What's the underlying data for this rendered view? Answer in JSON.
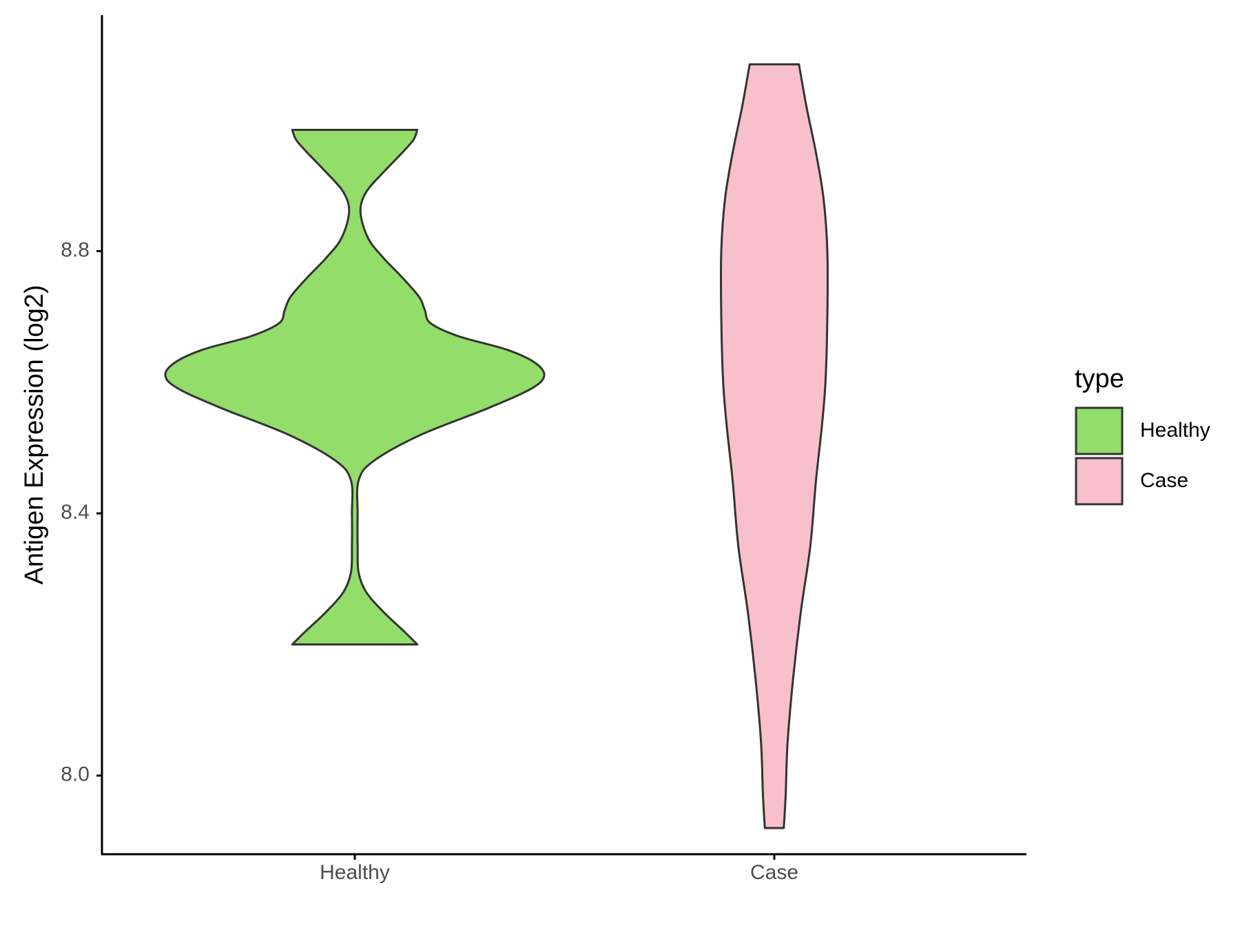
{
  "chart_data": {
    "type": "violin",
    "title": "",
    "xlabel": "",
    "ylabel": "Antigen Expression (log2)",
    "ylim": [
      7.88,
      9.16
    ],
    "yticks": [
      {
        "value": 8.0,
        "label": "8.0"
      },
      {
        "value": 8.4,
        "label": "8.4"
      },
      {
        "value": 8.8,
        "label": "8.8"
      }
    ],
    "categories": [
      "Healthy",
      "Case"
    ],
    "grid": false,
    "legend": {
      "title": "type",
      "position": "right",
      "entries": [
        {
          "label": "Healthy",
          "color": "#93DD6A"
        },
        {
          "label": "Case",
          "color": "#F7C0CB"
        }
      ]
    },
    "series": [
      {
        "category": "Healthy",
        "color": "#93DD6A",
        "min": 8.2,
        "max": 8.985,
        "density_profile": [
          {
            "y": 8.2,
            "width": 0.33
          },
          {
            "y": 8.22,
            "width": 0.26
          },
          {
            "y": 8.25,
            "width": 0.15
          },
          {
            "y": 8.28,
            "width": 0.06
          },
          {
            "y": 8.31,
            "width": 0.02
          },
          {
            "y": 8.35,
            "width": 0.015
          },
          {
            "y": 8.4,
            "width": 0.015
          },
          {
            "y": 8.45,
            "width": 0.02
          },
          {
            "y": 8.48,
            "width": 0.1
          },
          {
            "y": 8.52,
            "width": 0.35
          },
          {
            "y": 8.56,
            "width": 0.7
          },
          {
            "y": 8.59,
            "width": 0.93
          },
          {
            "y": 8.61,
            "width": 1.0
          },
          {
            "y": 8.63,
            "width": 0.95
          },
          {
            "y": 8.65,
            "width": 0.8
          },
          {
            "y": 8.67,
            "width": 0.55
          },
          {
            "y": 8.69,
            "width": 0.4
          },
          {
            "y": 8.71,
            "width": 0.37
          },
          {
            "y": 8.73,
            "width": 0.34
          },
          {
            "y": 8.76,
            "width": 0.25
          },
          {
            "y": 8.79,
            "width": 0.15
          },
          {
            "y": 8.82,
            "width": 0.07
          },
          {
            "y": 8.86,
            "width": 0.03
          },
          {
            "y": 8.89,
            "width": 0.06
          },
          {
            "y": 8.92,
            "width": 0.15
          },
          {
            "y": 8.95,
            "width": 0.25
          },
          {
            "y": 8.97,
            "width": 0.31
          },
          {
            "y": 8.985,
            "width": 0.33
          }
        ]
      },
      {
        "category": "Case",
        "color": "#F7C0CB",
        "min": 7.92,
        "max": 9.085,
        "density_profile": [
          {
            "y": 7.92,
            "width": 0.05
          },
          {
            "y": 7.97,
            "width": 0.06
          },
          {
            "y": 8.05,
            "width": 0.07
          },
          {
            "y": 8.15,
            "width": 0.1
          },
          {
            "y": 8.25,
            "width": 0.14
          },
          {
            "y": 8.35,
            "width": 0.19
          },
          {
            "y": 8.45,
            "width": 0.22
          },
          {
            "y": 8.53,
            "width": 0.25
          },
          {
            "y": 8.6,
            "width": 0.27
          },
          {
            "y": 8.7,
            "width": 0.28
          },
          {
            "y": 8.8,
            "width": 0.28
          },
          {
            "y": 8.88,
            "width": 0.26
          },
          {
            "y": 8.95,
            "width": 0.22
          },
          {
            "y": 9.02,
            "width": 0.17
          },
          {
            "y": 9.085,
            "width": 0.13
          }
        ]
      }
    ]
  }
}
